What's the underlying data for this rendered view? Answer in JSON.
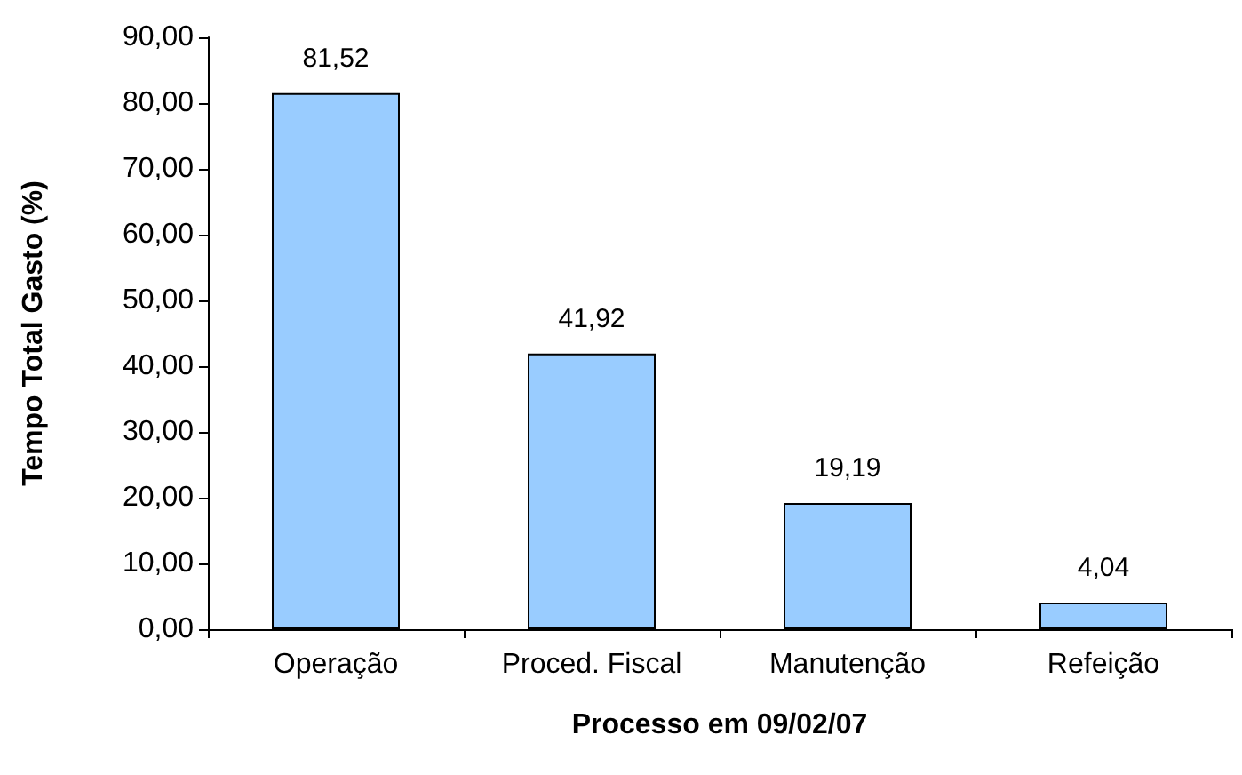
{
  "chart_data": {
    "type": "bar",
    "xlabel": "Processo em 09/02/07",
    "ylabel": "Tempo Total Gasto (%)",
    "categories": [
      "Operação",
      "Proced. Fiscal",
      "Manutenção",
      "Refeição"
    ],
    "values": [
      81.52,
      41.92,
      19.19,
      4.04
    ],
    "value_labels": [
      "81,52",
      "41,92",
      "19,19",
      "4,04"
    ],
    "color": "#99ccff",
    "ylim": [
      0,
      90
    ],
    "yticks": [
      {
        "value": 0,
        "label": "0,00"
      },
      {
        "value": 10,
        "label": "10,00"
      },
      {
        "value": 20,
        "label": "20,00"
      },
      {
        "value": 30,
        "label": "30,00"
      },
      {
        "value": 40,
        "label": "40,00"
      },
      {
        "value": 50,
        "label": "50,00"
      },
      {
        "value": 60,
        "label": "60,00"
      },
      {
        "value": 70,
        "label": "70,00"
      },
      {
        "value": 80,
        "label": "80,00"
      },
      {
        "value": 90,
        "label": "90,00"
      }
    ],
    "line_style": "solid"
  }
}
